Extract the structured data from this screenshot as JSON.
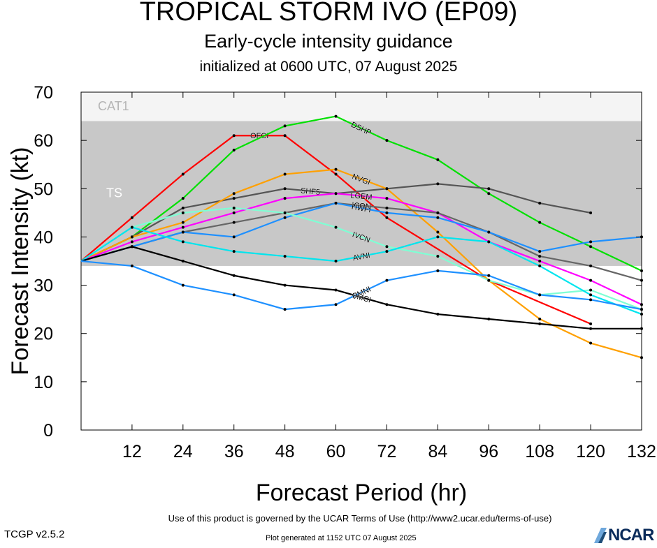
{
  "header": {
    "title": "TROPICAL STORM IVO (EP09)",
    "subtitle": "Early-cycle intensity guidance",
    "init": "initialized at 0600 UTC, 07 August 2025"
  },
  "footer": {
    "terms": "Use of this product is governed by the UCAR Terms of Use (http://www2.ucar.edu/terms-of-use)",
    "version": "TCGP v2.5.2",
    "generated": "Plot generated at 1152 UTC   07 August 2025",
    "logo": "NCAR"
  },
  "chart_data": {
    "type": "line",
    "xlabel": "Forecast Period (hr)",
    "ylabel": "Forecast Intensity (kt)",
    "xlim": [
      0,
      132
    ],
    "ylim": [
      0,
      70
    ],
    "xticks": [
      12,
      24,
      36,
      48,
      60,
      72,
      84,
      96,
      108,
      120,
      132
    ],
    "yticks": [
      0,
      10,
      20,
      30,
      40,
      50,
      60,
      70
    ],
    "bands": [
      {
        "label": "CAT1",
        "y0": 64,
        "y1": 70,
        "color": "#f4f4f4"
      },
      {
        "label": "TS",
        "y0": 34,
        "y1": 64,
        "color": "#c8c8c8"
      }
    ],
    "series": [
      {
        "name": "OFCI",
        "color": "#ff0000",
        "x": [
          0,
          12,
          24,
          36,
          48,
          60,
          72,
          96,
          120
        ],
        "y": [
          35,
          44,
          53,
          61,
          61,
          53,
          44,
          31,
          22
        ]
      },
      {
        "name": "DSHP",
        "color": "#00e000",
        "x": [
          0,
          12,
          24,
          36,
          48,
          60,
          72,
          84,
          96,
          108,
          120,
          132
        ],
        "y": [
          35,
          40,
          48,
          58,
          63,
          65,
          60,
          56,
          49,
          43,
          38,
          33
        ]
      },
      {
        "name": "SHF5",
        "color": "#555555",
        "x": [
          0,
          12,
          24,
          36,
          48,
          60,
          72,
          84,
          96,
          108,
          120
        ],
        "y": [
          35,
          40,
          46,
          48,
          50,
          49,
          50,
          51,
          50,
          47,
          45
        ]
      },
      {
        "name": "NVGI",
        "color": "#ffa000",
        "x": [
          0,
          12,
          24,
          36,
          48,
          60,
          72,
          84,
          96,
          108,
          120,
          132
        ],
        "y": [
          35,
          40,
          43,
          49,
          53,
          54,
          50,
          41,
          31,
          23,
          18,
          15
        ]
      },
      {
        "name": "LGEM",
        "color": "#ff00ff",
        "x": [
          0,
          12,
          24,
          36,
          48,
          60,
          72,
          84,
          96,
          108,
          120,
          132
        ],
        "y": [
          35,
          39,
          42,
          45,
          48,
          49,
          48,
          45,
          39,
          35,
          31,
          26
        ]
      },
      {
        "name": "ICON",
        "color": "#666666",
        "x": [
          0,
          12,
          24,
          36,
          48,
          60,
          72,
          84,
          96,
          108,
          120,
          132
        ],
        "y": [
          35,
          38,
          41,
          43,
          45,
          47,
          46,
          45,
          41,
          36,
          34,
          31
        ]
      },
      {
        "name": "HWFI",
        "color": "#1e90ff",
        "x": [
          0,
          12,
          24,
          36,
          48,
          60,
          72,
          84,
          96,
          108,
          120,
          132
        ],
        "y": [
          35,
          38,
          41,
          40,
          44,
          47,
          45,
          44,
          41,
          37,
          39,
          40
        ]
      },
      {
        "name": "IVCN",
        "color": "#7fffd4",
        "x": [
          0,
          12,
          24,
          36,
          48,
          60,
          72,
          84,
          96,
          108,
          120,
          132
        ],
        "y": [
          35,
          42,
          45,
          46,
          45,
          42,
          38,
          36,
          31,
          28,
          29,
          25
        ]
      },
      {
        "name": "AVNI",
        "color": "#00e5ee",
        "x": [
          0,
          12,
          24,
          36,
          48,
          60,
          72,
          84,
          96,
          108,
          120,
          132
        ],
        "y": [
          35,
          42,
          39,
          37,
          36,
          35,
          37,
          40,
          39,
          34,
          28,
          24
        ]
      },
      {
        "name": "CMCI",
        "color": "#000000",
        "x": [
          0,
          12,
          24,
          36,
          48,
          60,
          72,
          84,
          96,
          108,
          120,
          132
        ],
        "y": [
          35,
          38,
          35,
          32,
          30,
          29,
          26,
          24,
          23,
          22,
          21,
          21
        ]
      },
      {
        "name": "HMNI",
        "color": "#1e90ff",
        "x": [
          0,
          12,
          24,
          36,
          48,
          60,
          72,
          84,
          96,
          108,
          120,
          132
        ],
        "y": [
          35,
          34,
          30,
          28,
          25,
          26,
          31,
          33,
          32,
          28,
          27,
          25
        ]
      }
    ]
  }
}
